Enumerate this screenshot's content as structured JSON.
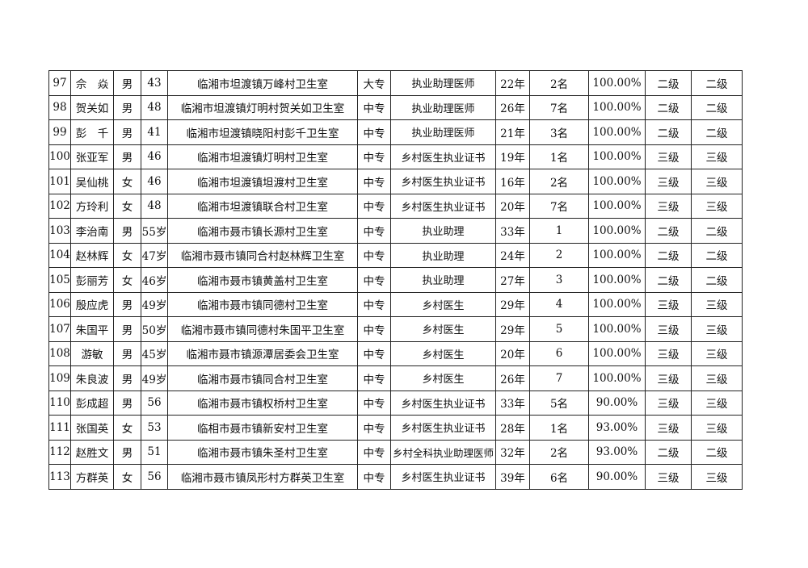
{
  "rows": [
    {
      "no": "97",
      "name": "佘　焱",
      "sex": "男",
      "age": "43",
      "clinic": "临湘市坦渡镇万峰村卫生室",
      "edu": "大专",
      "cert": "执业助理医师",
      "years": "22年",
      "staff": "2名",
      "rate": "100.00%",
      "level1": "二级",
      "level2": "二级"
    },
    {
      "no": "98",
      "name": "贺关如",
      "sex": "男",
      "age": "48",
      "clinic": "临湘市坦渡镇灯明村贺关如卫生室",
      "edu": "中专",
      "cert": "执业助理医师",
      "years": "26年",
      "staff": "7名",
      "rate": "100.00%",
      "level1": "二级",
      "level2": "二级"
    },
    {
      "no": "99",
      "name": "彭　千",
      "sex": "男",
      "age": "41",
      "clinic": "临湘市坦渡镇晓阳村彭千卫生室",
      "edu": "中专",
      "cert": "执业助理医师",
      "years": "21年",
      "staff": "3名",
      "rate": "100.00%",
      "level1": "二级",
      "level2": "二级"
    },
    {
      "no": "100",
      "name": "张亚军",
      "sex": "男",
      "age": "46",
      "clinic": "临湘市坦渡镇灯明村卫生室",
      "edu": "中专",
      "cert": "乡村医生执业证书",
      "years": "19年",
      "staff": "1名",
      "rate": "100.00%",
      "level1": "三级",
      "level2": "三级"
    },
    {
      "no": "101",
      "name": "吴仙桃",
      "sex": "女",
      "age": "46",
      "clinic": "临湘市坦渡镇坦渡村卫生室",
      "edu": "中专",
      "cert": "乡村医生执业证书",
      "years": "16年",
      "staff": "2名",
      "rate": "100.00%",
      "level1": "三级",
      "level2": "三级"
    },
    {
      "no": "102",
      "name": "方玲利",
      "sex": "女",
      "age": "48",
      "clinic": "临湘市坦渡镇联合村卫生室",
      "edu": "中专",
      "cert": "乡村医生执业证书",
      "years": "20年",
      "staff": "7名",
      "rate": "100.00%",
      "level1": "三级",
      "level2": "三级"
    },
    {
      "no": "103",
      "name": "李治南",
      "sex": "男",
      "age": "55岁",
      "clinic": "临湘市聂市镇长源村卫生室",
      "edu": "中专",
      "cert": "执业助理",
      "years": "33年",
      "staff": "1",
      "rate": "100.00%",
      "level1": "二级",
      "level2": "二级"
    },
    {
      "no": "104",
      "name": "赵林辉",
      "sex": "女",
      "age": "47岁",
      "clinic": "临湘市聂市镇同合村赵林辉卫生室",
      "edu": "中专",
      "cert": "执业助理",
      "years": "24年",
      "staff": "2",
      "rate": "100.00%",
      "level1": "二级",
      "level2": "二级"
    },
    {
      "no": "105",
      "name": "彭丽芳",
      "sex": "女",
      "age": "46岁",
      "clinic": "临湘市聂市镇黄盖村卫生室",
      "edu": "中专",
      "cert": "执业助理",
      "years": "27年",
      "staff": "3",
      "rate": "100.00%",
      "level1": "二级",
      "level2": "二级"
    },
    {
      "no": "106",
      "name": "殷应虎",
      "sex": "男",
      "age": "49岁",
      "clinic": "临湘市聂市镇同德村卫生室",
      "edu": "中专",
      "cert": "乡村医生",
      "years": "29年",
      "staff": "4",
      "rate": "100.00%",
      "level1": "三级",
      "level2": "三级"
    },
    {
      "no": "107",
      "name": "朱国平",
      "sex": "男",
      "age": "50岁",
      "clinic": "临湘市聂市镇同德村朱国平卫生室",
      "edu": "中专",
      "cert": "乡村医生",
      "years": "29年",
      "staff": "5",
      "rate": "100.00%",
      "level1": "三级",
      "level2": "三级"
    },
    {
      "no": "108",
      "name": "游敏",
      "sex": "男",
      "age": "45岁",
      "clinic": "临湘市聂市镇源潭居委会卫生室",
      "edu": "中专",
      "cert": "乡村医生",
      "years": "20年",
      "staff": "6",
      "rate": "100.00%",
      "level1": "三级",
      "level2": "三级"
    },
    {
      "no": "109",
      "name": "朱良波",
      "sex": "男",
      "age": "49岁",
      "clinic": "临湘市聂市镇同合村卫生室",
      "edu": "中专",
      "cert": "乡村医生",
      "years": "26年",
      "staff": "7",
      "rate": "100.00%",
      "level1": "三级",
      "level2": "三级"
    },
    {
      "no": "110",
      "name": "彭成超",
      "sex": "男",
      "age": "56",
      "clinic": "临湘市聂市镇权桥村卫生室",
      "edu": "中专",
      "cert": "乡村医生执业证书",
      "years": "33年",
      "staff": "5名",
      "rate": "90.00%",
      "level1": "三级",
      "level2": "三级"
    },
    {
      "no": "111",
      "name": "张国英",
      "sex": "女",
      "age": "53",
      "clinic": "临相市聂市镇新安村卫生室",
      "edu": "中专",
      "cert": "乡村医生执业证书",
      "years": "28年",
      "staff": "1名",
      "rate": "93.00%",
      "level1": "三级",
      "level2": "三级"
    },
    {
      "no": "112",
      "name": "赵胜文",
      "sex": "男",
      "age": "51",
      "clinic": "临湘市聂市镇朱圣村卫生室",
      "edu": "中专",
      "cert": "乡村全科执业助理医师",
      "years": "32年",
      "staff": "2名",
      "rate": "93.00%",
      "level1": "二级",
      "level2": "二级"
    },
    {
      "no": "113",
      "name": "方群英",
      "sex": "女",
      "age": "56",
      "clinic": "临湘市聂市镇凤形村方群英卫生室",
      "edu": "中专",
      "cert": "乡村医生执业证书",
      "years": "39年",
      "staff": "6名",
      "rate": "90.00%",
      "level1": "三级",
      "level2": "三级"
    }
  ]
}
